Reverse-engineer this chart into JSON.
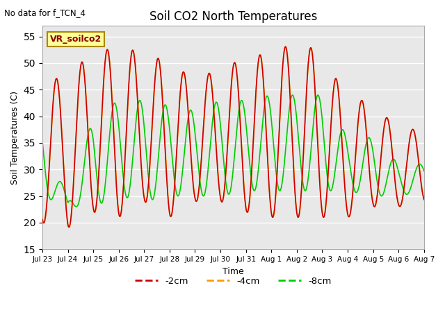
{
  "title": "Soil CO2 North Temperatures",
  "subtitle": "No data for f_TCN_4",
  "xlabel": "Time",
  "ylabel": "Soil Temperatures (C)",
  "ylim": [
    15,
    57
  ],
  "yticks": [
    15,
    20,
    25,
    30,
    35,
    40,
    45,
    50,
    55
  ],
  "legend_label": "VR_soilco2",
  "series_labels": [
    "-2cm",
    "-4cm",
    "-8cm"
  ],
  "series_colors": [
    "#cc0000",
    "#ff9900",
    "#00cc00"
  ],
  "series_linewidths": [
    1.2,
    1.2,
    1.2
  ],
  "bg_color": "#e8e8e8",
  "fig_bg_color": "#ffffff",
  "n_points": 1000,
  "annotation_box_color": "#ffff99",
  "annotation_box_edge": "#aa8800",
  "tick_labels": [
    "Jul 23",
    "Jul 24",
    "Jul 25",
    "Jul 26",
    "Jul 27",
    "Jul 28",
    "Jul 29",
    "Jul 30",
    "Jul 31",
    "Aug 1",
    "Aug 2",
    "Aug 3",
    "Aug 4",
    "Aug 5",
    "Aug 6",
    "Aug 7"
  ]
}
